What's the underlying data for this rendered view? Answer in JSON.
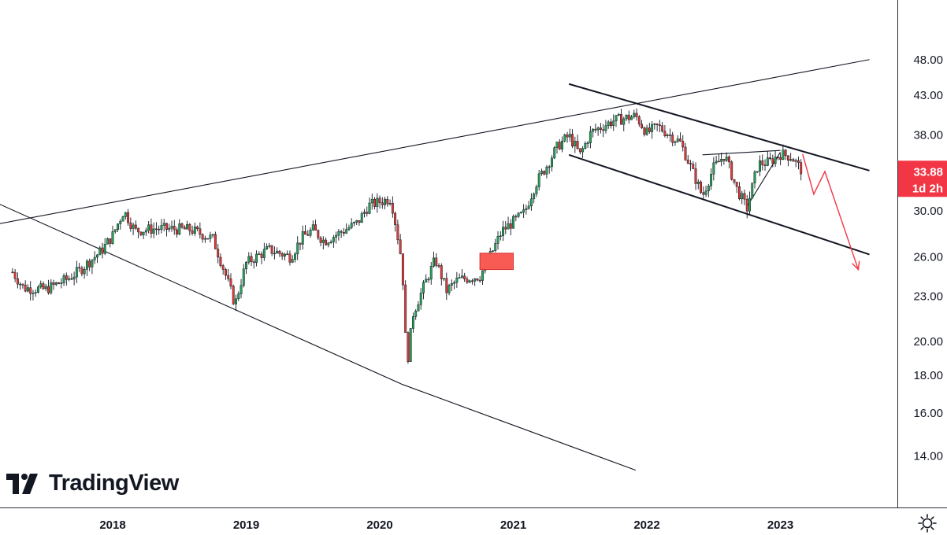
{
  "chart_data": {
    "type": "candlestick",
    "branding": "TradingView",
    "price_scale": "log",
    "y_ticks": [
      "48.00",
      "43.00",
      "38.00",
      "33.88",
      "30.00",
      "26.00",
      "23.00",
      "20.00",
      "18.00",
      "16.00",
      "14.00"
    ],
    "y_tick_values": [
      48,
      43,
      38,
      30,
      26,
      23,
      20,
      18,
      16,
      14
    ],
    "x_ticks": [
      "2018",
      "2019",
      "2020",
      "2021",
      "2022",
      "2023"
    ],
    "last_price": {
      "value": "33.88",
      "countdown": "1d 2h",
      "color": "#f23645"
    },
    "up_color": "#26a65b",
    "down_color": "#e53935",
    "anchor_points": [
      [
        "2017-04",
        24.8
      ],
      [
        "2017-05",
        23.6
      ],
      [
        "2017-07",
        23.5
      ],
      [
        "2017-09",
        24.3
      ],
      [
        "2017-10",
        24.9
      ],
      [
        "2017-12",
        26.5
      ],
      [
        "2018-01",
        27.8
      ],
      [
        "2018-02",
        30.0
      ],
      [
        "2018-03",
        28.2
      ],
      [
        "2018-05",
        28.4
      ],
      [
        "2018-08",
        28.3
      ],
      [
        "2018-10",
        27.5
      ],
      [
        "2018-12",
        22.4
      ],
      [
        "2019-01",
        25.5
      ],
      [
        "2019-03",
        26.6
      ],
      [
        "2019-05",
        26.0
      ],
      [
        "2019-06",
        27.6
      ],
      [
        "2019-07",
        28.3
      ],
      [
        "2019-08",
        27.3
      ],
      [
        "2019-09",
        27.8
      ],
      [
        "2019-11",
        28.9
      ],
      [
        "2019-12",
        30.5
      ],
      [
        "2020-02",
        31.2
      ],
      [
        "2020-03",
        25.5
      ],
      [
        "2020-03",
        18.4
      ],
      [
        "2020-04",
        21.8
      ],
      [
        "2020-06",
        25.8
      ],
      [
        "2020-07",
        23.4
      ],
      [
        "2020-08",
        24.2
      ],
      [
        "2020-10",
        24.5
      ],
      [
        "2020-11",
        26.2
      ],
      [
        "2020-12",
        28.2
      ],
      [
        "2021-02",
        29.8
      ],
      [
        "2021-03",
        32.6
      ],
      [
        "2021-04",
        34.5
      ],
      [
        "2021-05",
        36.7
      ],
      [
        "2021-06",
        37.9
      ],
      [
        "2021-07",
        35.7
      ],
      [
        "2021-08",
        38.3
      ],
      [
        "2021-10",
        39.7
      ],
      [
        "2021-12",
        40.3
      ],
      [
        "2022-01",
        38.2
      ],
      [
        "2022-02",
        39.0
      ],
      [
        "2022-04",
        37.1
      ],
      [
        "2022-05",
        34.2
      ],
      [
        "2022-06",
        31.4
      ],
      [
        "2022-07",
        34.3
      ],
      [
        "2022-08",
        35.7
      ],
      [
        "2022-09",
        32.3
      ],
      [
        "2022-10",
        30.2
      ],
      [
        "2022-11",
        34.7
      ],
      [
        "2022-12",
        34.9
      ],
      [
        "2023-01",
        35.8
      ],
      [
        "2023-02",
        35.5
      ],
      [
        "2023-03",
        33.88
      ]
    ],
    "trendlines": [
      {
        "name": "long-term-resistance",
        "from": [
          "2016-12",
          28.3
        ],
        "to": [
          "2023-09",
          48.0
        ]
      },
      {
        "name": "long-term-support",
        "from": [
          "2016-12",
          32.0
        ],
        "to": [
          "2020-03",
          17.5
        ]
      },
      {
        "name": "long-term-support-extension",
        "from": [
          "2020-03",
          17.5
        ],
        "to": [
          "2021-12",
          13.4
        ]
      },
      {
        "name": "channel-upper",
        "from": [
          "2021-06",
          44.5
        ],
        "to": [
          "2023-09",
          34.0
        ]
      },
      {
        "name": "channel-lower",
        "from": [
          "2021-06",
          35.7
        ],
        "to": [
          "2023-09",
          26.2
        ]
      },
      {
        "name": "wedge-upper",
        "from": [
          "2022-06",
          35.7
        ],
        "to": [
          "2023-01",
          36.2
        ]
      },
      {
        "name": "wedge-lower",
        "from": [
          "2022-10",
          30.4
        ],
        "to": [
          "2023-01",
          36.0
        ]
      }
    ],
    "projection_path": [
      [
        "2023-03",
        35.8
      ],
      [
        "2023-04",
        31.6
      ],
      [
        "2023-05",
        33.9
      ],
      [
        "2023-08",
        25.0
      ]
    ],
    "zone_box": {
      "from": [
        "2020-10",
        26.3
      ],
      "to": [
        "2021-01",
        25.0
      ],
      "color": "#f85a54"
    }
  }
}
